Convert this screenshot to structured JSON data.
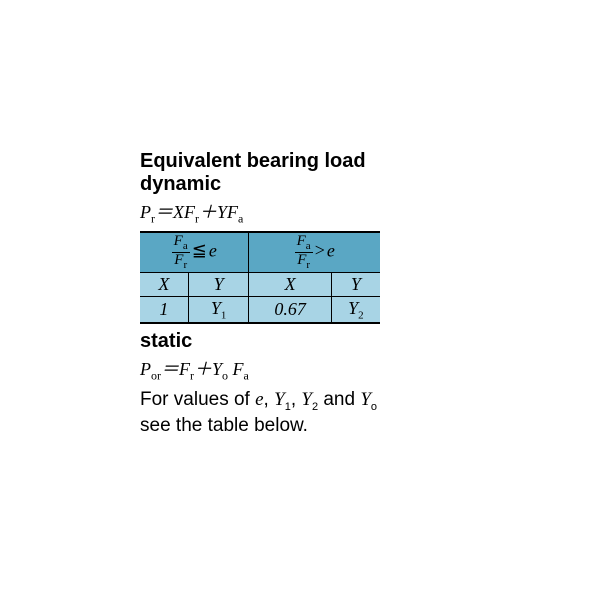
{
  "title": "Equivalent bearing load",
  "dynamic_label": "dynamic",
  "static_label": "static",
  "table": {
    "col_le": {
      "X": "1",
      "Y": "Y₁"
    },
    "col_gt": {
      "X": "0.67",
      "Y": "Y₂"
    },
    "header_labels": {
      "X": "X",
      "Y": "Y"
    }
  },
  "colors": {
    "header_dark": "#5aa7c4",
    "header_light": "#a8d4e5",
    "background": "#ffffff"
  },
  "note_prefix": "For values of ",
  "note_mid": " and ",
  "note_suffix": " see the table below.",
  "vars": {
    "e": "e",
    "Y1": "Y₁",
    "Y2": "Y₂",
    "Y0": "Y₀",
    "comma": ", "
  }
}
